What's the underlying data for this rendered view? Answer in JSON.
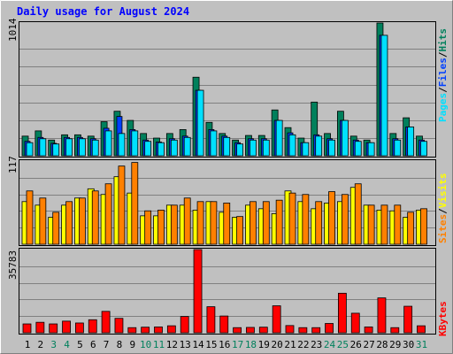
{
  "title": "Daily usage for August 2024",
  "colors": {
    "background": "#C0C0C0",
    "title": "#0000FF",
    "hits": "#00805C",
    "files": "#0040FF",
    "pages": "#00E0FF",
    "visits": "#FFFF00",
    "sites": "#FF8000",
    "kbytes": "#FF0000",
    "weekday_label": "#000000",
    "weekend_label": "#00805C"
  },
  "right_labels": {
    "top": [
      {
        "text": "Pages",
        "color": "#00E0FF"
      },
      {
        "text": "/",
        "color": "#000000"
      },
      {
        "text": "Files",
        "color": "#0040FF"
      },
      {
        "text": "/",
        "color": "#000000"
      },
      {
        "text": "Hits",
        "color": "#00805C"
      }
    ],
    "middle": [
      {
        "text": "Sites",
        "color": "#FF8000"
      },
      {
        "text": "/",
        "color": "#000000"
      },
      {
        "text": "Visits",
        "color": "#FFFF00"
      }
    ],
    "bottom": [
      {
        "text": "KBytes",
        "color": "#FF0000"
      }
    ]
  },
  "chart_data": {
    "type": "bar",
    "categories": [
      "1",
      "2",
      "3",
      "4",
      "5",
      "6",
      "7",
      "8",
      "9",
      "10",
      "11",
      "12",
      "13",
      "14",
      "15",
      "16",
      "17",
      "18",
      "19",
      "20",
      "21",
      "22",
      "23",
      "24",
      "25",
      "26",
      "27",
      "28",
      "29",
      "30",
      "31"
    ],
    "weekend_days": [
      "3",
      "4",
      "10",
      "11",
      "17",
      "18",
      "24",
      "25",
      "31"
    ],
    "panels": [
      {
        "name": "hits-files-pages",
        "ymax_label": "1014",
        "ylim": [
          0,
          1014
        ],
        "grid": true,
        "series": [
          {
            "name": "Hits",
            "values": [
              150,
              190,
              120,
              160,
              160,
              150,
              260,
              340,
              270,
              170,
              135,
              170,
              200,
              600,
              255,
              170,
              120,
              155,
              155,
              350,
              215,
              135,
              410,
              170,
              340,
              150,
              120,
              1014,
              170,
              290,
              150
            ]
          },
          {
            "name": "Files",
            "values": [
              110,
              140,
              95,
              140,
              140,
              130,
              210,
              300,
              200,
              120,
              105,
              130,
              150,
              500,
              200,
              150,
              100,
              130,
              130,
              270,
              175,
              100,
              160,
              130,
              270,
              120,
              100,
              920,
              130,
              220,
              120
            ]
          },
          {
            "name": "Pages",
            "values": [
              100,
              130,
              90,
              130,
              130,
              120,
              190,
              170,
              190,
              110,
              100,
              120,
              140,
              500,
              190,
              140,
              90,
              120,
              120,
              270,
              160,
              100,
              150,
              120,
              270,
              110,
              100,
              920,
              120,
              220,
              110
            ]
          }
        ]
      },
      {
        "name": "visits-sites",
        "ymax_label": "117",
        "ylim": [
          0,
          117
        ],
        "grid": true,
        "series": [
          {
            "name": "Visits",
            "values": [
              60,
              55,
              38,
              55,
              65,
              78,
              70,
              95,
              72,
              40,
              40,
              55,
              55,
              48,
              60,
              45,
              38,
              55,
              50,
              43,
              75,
              60,
              50,
              58,
              60,
              80,
              55,
              48,
              47,
              38,
              48
            ]
          },
          {
            "name": "Sites",
            "values": [
              75,
              65,
              45,
              60,
              65,
              75,
              85,
              110,
              115,
              47,
              48,
              55,
              65,
              60,
              60,
              58,
              39,
              60,
              60,
              62,
              72,
              70,
              60,
              74,
              70,
              85,
              55,
              55,
              55,
              45,
              50
            ]
          }
        ]
      },
      {
        "name": "kbytes",
        "ymax_label": "35783",
        "ylim": [
          0,
          35783
        ],
        "grid": true,
        "series": [
          {
            "name": "KBytes",
            "values": [
              3800,
              4500,
              3800,
              5000,
              4200,
              5600,
              9200,
              6200,
              2200,
              2400,
              2500,
              3000,
              7000,
              35783,
              11200,
              7200,
              2200,
              2300,
              2400,
              11600,
              3100,
              2200,
              2200,
              4000,
              17000,
              8400,
              2500,
              15000,
              2200,
              11400,
              3000
            ]
          }
        ]
      }
    ]
  }
}
